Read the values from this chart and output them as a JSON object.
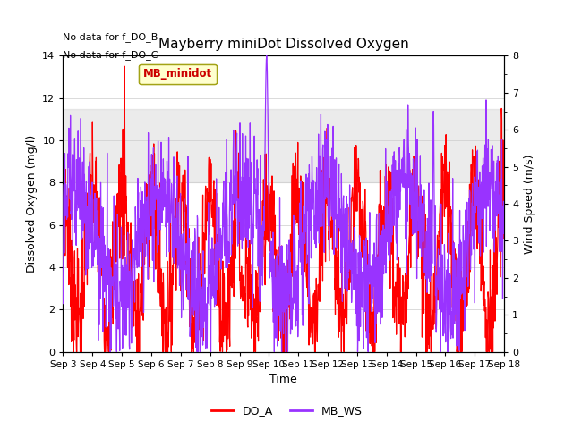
{
  "title": "Mayberry miniDot Dissolved Oxygen",
  "xlabel": "Time",
  "ylabel_left": "Dissolved Oxygen (mg/l)",
  "ylabel_right": "Wind Speed (m/s)",
  "text_no_data": [
    "No data for f_DO_B",
    "No data for f_DO_C"
  ],
  "legend_box_label": "MB_minidot",
  "ylim_left": [
    0,
    14
  ],
  "ylim_right": [
    0.0,
    8.0
  ],
  "yticks_left": [
    0,
    2,
    4,
    6,
    8,
    10,
    12,
    14
  ],
  "yticks_right": [
    0.0,
    1.0,
    2.0,
    3.0,
    4.0,
    5.0,
    6.0,
    7.0,
    8.0
  ],
  "shade_band": [
    8.0,
    11.5
  ],
  "xtick_labels": [
    "Sep 3",
    "Sep 4",
    "Sep 5",
    "Sep 6",
    "Sep 7",
    "Sep 8",
    "Sep 9",
    "Sep 10",
    "Sep 11",
    "Sep 12",
    "Sep 13",
    "Sep 14",
    "Sep 15",
    "Sep 16",
    "Sep 17",
    "Sep 18"
  ],
  "DO_A_color": "#ff0000",
  "MB_WS_color": "#9933ff",
  "legend_DO_A": "DO_A",
  "legend_MB_WS": "MB_WS",
  "background_color": "#ffffff",
  "grid_color": "#cccccc",
  "shade_color": "#d3d3d3",
  "title_fontsize": 11,
  "axis_label_fontsize": 9,
  "tick_fontsize": 8,
  "xtick_fontsize": 7.5,
  "line_width": 0.9
}
